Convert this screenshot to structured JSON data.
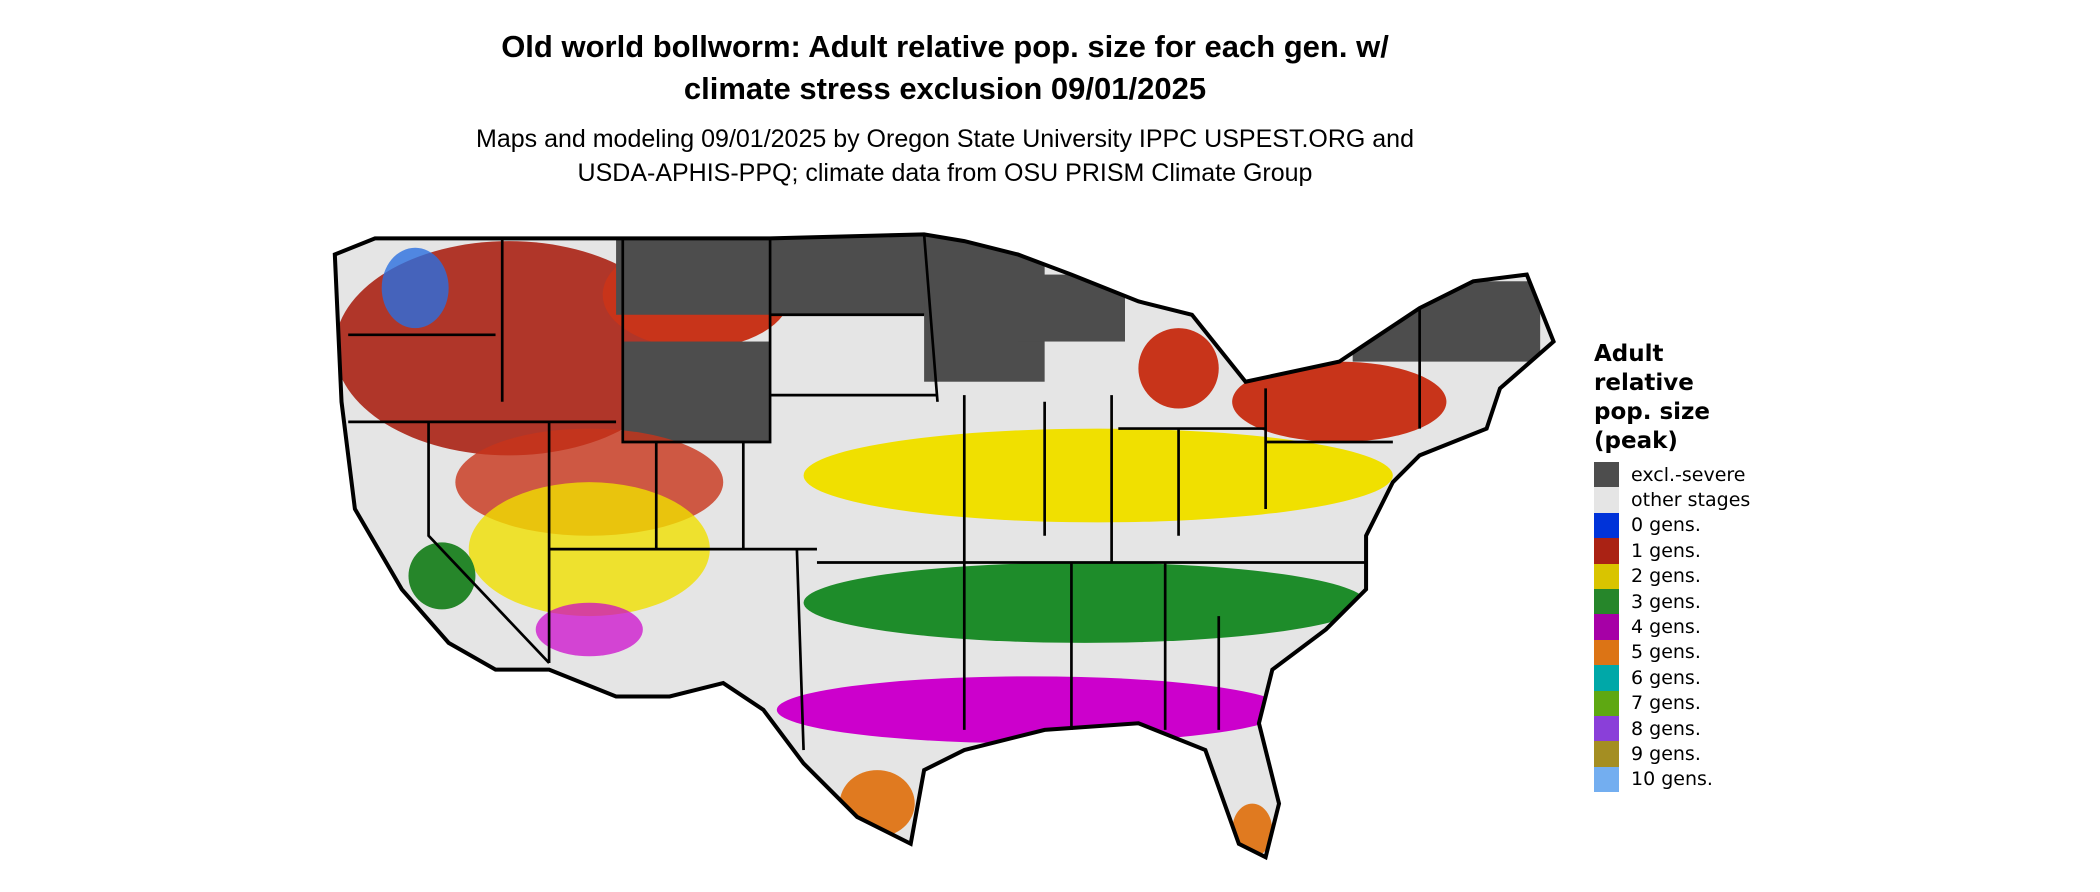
{
  "title": {
    "line1": "Old world bollworm: Adult relative pop. size for each gen. w/",
    "line2": "climate stress exclusion 09/01/2025"
  },
  "subtitle": {
    "line1": "Maps and modeling 09/01/2025 by Oregon State University IPPC USPEST.ORG and",
    "line2": "USDA-APHIS-PPQ; climate data from OSU PRISM Climate Group"
  },
  "legend": {
    "title": "Adult relative pop. size (peak)",
    "items": [
      {
        "label": "excl.-severe",
        "color": "#4d4d4d"
      },
      {
        "label": "other stages",
        "color": "#e5e5e5"
      },
      {
        "label": "0 gens.",
        "color": "#0033d9"
      },
      {
        "label": "1 gens.",
        "color": "#aa2214"
      },
      {
        "label": "2 gens.",
        "color": "#d9c400"
      },
      {
        "label": "3 gens.",
        "color": "#26862a"
      },
      {
        "label": "4 gens.",
        "color": "#a600a6"
      },
      {
        "label": "5 gens.",
        "color": "#dc7415"
      },
      {
        "label": "6 gens.",
        "color": "#00a8a8"
      },
      {
        "label": "7 gens.",
        "color": "#5ea812"
      },
      {
        "label": "8 gens.",
        "color": "#8a3fd9"
      },
      {
        "label": "9 gens.",
        "color": "#a48e22"
      },
      {
        "label": "10 gens.",
        "color": "#73aef0"
      }
    ]
  }
}
